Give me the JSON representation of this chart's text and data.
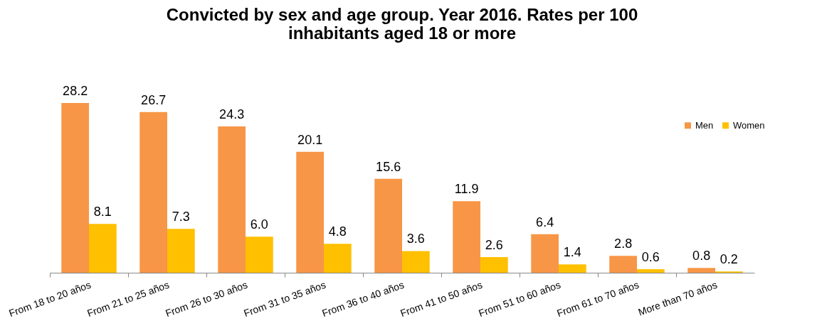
{
  "chart_data": {
    "type": "bar",
    "title": "Convicted by sex and age group. Year 2016. Rates per 100 inhabitants aged 18 or more",
    "categories": [
      "From 18 to 20 años",
      "From 21 to 25 años",
      "From 26 to 30 años",
      "From 31 to 35 años",
      "From 36 to 40 años",
      "From 41 to 50 años",
      "From 51 to 60 años",
      "From 61 to 70 años",
      "More than 70 años"
    ],
    "series": [
      {
        "name": "Men",
        "color": "#f79646",
        "values": [
          28.2,
          26.7,
          24.3,
          20.1,
          15.6,
          11.9,
          6.4,
          2.8,
          0.8
        ],
        "value_labels": [
          "28.2",
          "26.7",
          "24.3",
          "20.1",
          "15.6",
          "11.9",
          "6.4",
          "2.8",
          "0.8"
        ]
      },
      {
        "name": "Women",
        "color": "#ffc000",
        "values": [
          8.1,
          7.3,
          6.0,
          4.8,
          3.6,
          2.6,
          1.4,
          0.6,
          0.2
        ],
        "value_labels": [
          "8.1",
          "7.3",
          "6.0",
          "4.8",
          "3.6",
          "2.6",
          "1.4",
          "0.6",
          "0.2"
        ]
      }
    ],
    "legend": "top right"
  }
}
